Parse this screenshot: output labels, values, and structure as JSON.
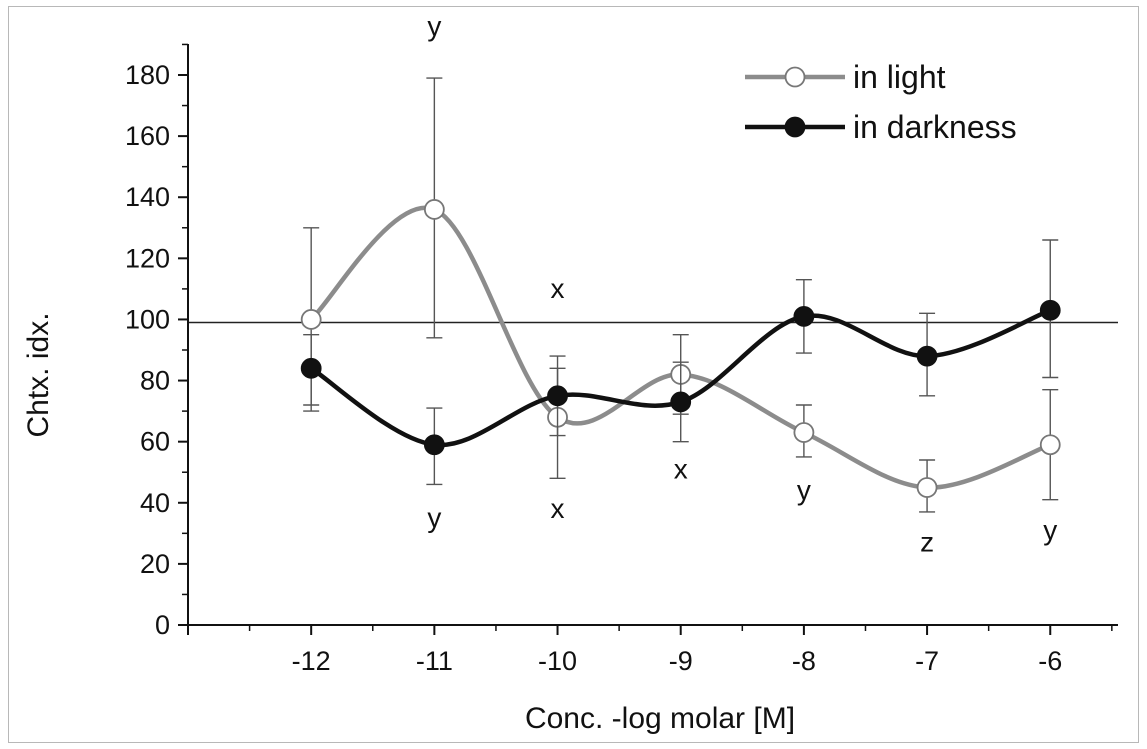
{
  "chart_data": {
    "type": "line",
    "xlabel": "Conc. -log molar [M]",
    "ylabel": "Chtx. idx.",
    "x": [
      -12,
      -11,
      -10,
      -9,
      -8,
      -7,
      -6
    ],
    "x_tick_labels": [
      "-12",
      "-11",
      "-10",
      "-9",
      "-8",
      "-7",
      "-6"
    ],
    "xlim": [
      -13,
      -5.45
    ],
    "ylim": [
      0,
      190
    ],
    "y_ticks": [
      0,
      20,
      40,
      60,
      80,
      100,
      120,
      140,
      160,
      180
    ],
    "y_tick_labels": [
      "0",
      "20",
      "40",
      "60",
      "80",
      "100",
      "120",
      "140",
      "160",
      "180"
    ],
    "reference_line": 99,
    "legend_position": "top-right",
    "series": [
      {
        "name": "in light",
        "color": "#8c8c8c",
        "marker": "open-circle",
        "values": [
          100,
          136,
          68,
          82,
          63,
          45,
          59
        ],
        "err_high": [
          130,
          179,
          84,
          95,
          72,
          54,
          77
        ],
        "err_low": [
          72,
          94,
          48,
          69,
          55,
          37,
          41
        ]
      },
      {
        "name": "in darkness",
        "color": "#111111",
        "marker": "filled-circle",
        "values": [
          84,
          59,
          75,
          73,
          101,
          88,
          103
        ],
        "err_high": [
          95,
          71,
          88,
          86,
          113,
          102,
          126
        ],
        "err_low": [
          70,
          46,
          62,
          60,
          89,
          75,
          81
        ]
      }
    ],
    "annotations": [
      {
        "text": "y",
        "x": -11,
        "y": 193
      },
      {
        "text": "x",
        "x": -10,
        "y": 107
      },
      {
        "text": "y",
        "x": -11,
        "y": 32
      },
      {
        "text": "x",
        "x": -10,
        "y": 35
      },
      {
        "text": "x",
        "x": -9,
        "y": 48
      },
      {
        "text": "y",
        "x": -8,
        "y": 41
      },
      {
        "text": "z",
        "x": -7,
        "y": 24
      },
      {
        "text": "y",
        "x": -6,
        "y": 28
      }
    ]
  }
}
